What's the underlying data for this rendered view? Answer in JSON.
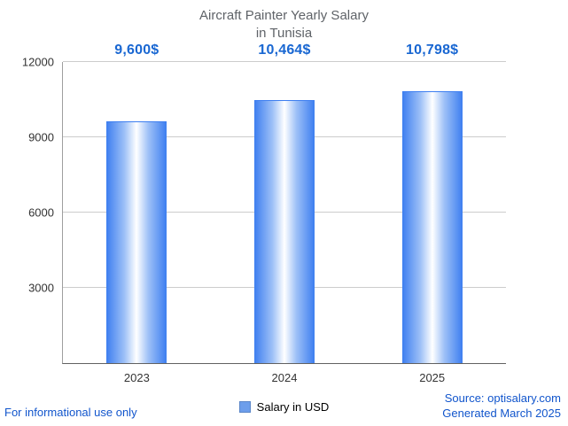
{
  "title_line1": "Aircraft Painter Yearly Salary",
  "title_line2": "in Tunisia",
  "legend": {
    "label": "Salary in USD",
    "marker_color": "#6d9eeb"
  },
  "footer": {
    "left": "For informational use only",
    "source": "Source: optisalary.com",
    "generated": "Generated March 2025"
  },
  "colors": {
    "value_label": "#1967d2",
    "bar_edge": "#3d7ef0",
    "bar_center": "#ffffff",
    "gridline": "#cccccc",
    "title": "#5f6368",
    "footer_blue": "#1155cc"
  },
  "chart_data": {
    "type": "bar",
    "title": "Aircraft Painter Yearly Salary in Tunisia",
    "categories": [
      "2023",
      "2024",
      "2025"
    ],
    "values": [
      9600,
      10464,
      10798
    ],
    "value_labels": [
      "9,600$",
      "10,464$",
      "10,798$"
    ],
    "series_name": "Salary in USD",
    "xlabel": "",
    "ylabel": "",
    "ylim": [
      0,
      12000
    ],
    "yticks": [
      3000,
      6000,
      9000,
      12000
    ],
    "grid": true,
    "legend_position": "bottom"
  }
}
